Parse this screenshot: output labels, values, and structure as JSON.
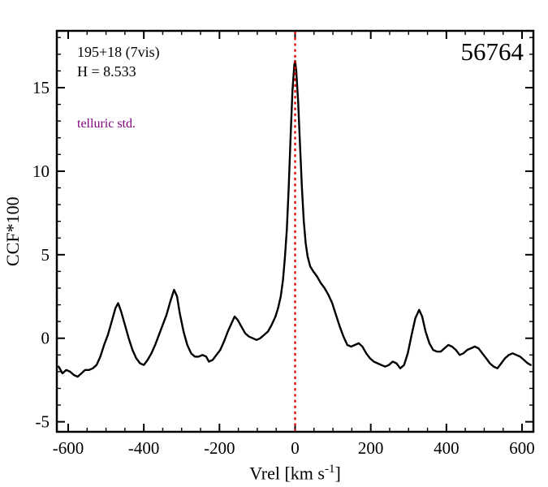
{
  "chart_data": {
    "type": "line",
    "title": "56764",
    "annotations": {
      "target_id": "195+18 (7vis)",
      "h_magnitude": "H = 8.533",
      "telluric_note": "telluric std."
    },
    "xlabel": "Vrel [km s⁻¹]",
    "xlabel_parts": {
      "prefix": "Vrel [km s",
      "sup": "-1",
      "suffix": "]"
    },
    "ylabel": "CCF*100",
    "xlim": [
      -630,
      630
    ],
    "ylim": [
      -5.6,
      18.4
    ],
    "x_ticks": [
      -600,
      -400,
      -200,
      0,
      200,
      400,
      600
    ],
    "y_ticks": [
      -5,
      0,
      5,
      10,
      15
    ],
    "x_minor_step": 50,
    "y_minor_step": 1,
    "grid": false,
    "legend": false,
    "vline": {
      "x": 0,
      "style": "dotted",
      "color": "#e00000"
    },
    "colors": {
      "curve": "#000000",
      "axis": "#000000",
      "vline": "#e00000",
      "telluric_note": "#800080",
      "background": "#ffffff"
    },
    "series": [
      {
        "name": "CCF",
        "points": [
          [
            -625,
            -1.7
          ],
          [
            -615,
            -2.1
          ],
          [
            -605,
            -1.9
          ],
          [
            -595,
            -2.0
          ],
          [
            -585,
            -2.2
          ],
          [
            -575,
            -2.3
          ],
          [
            -565,
            -2.1
          ],
          [
            -555,
            -1.9
          ],
          [
            -545,
            -1.9
          ],
          [
            -535,
            -1.8
          ],
          [
            -525,
            -1.6
          ],
          [
            -515,
            -1.1
          ],
          [
            -505,
            -0.4
          ],
          [
            -495,
            0.2
          ],
          [
            -485,
            1.0
          ],
          [
            -475,
            1.8
          ],
          [
            -468,
            2.1
          ],
          [
            -460,
            1.6
          ],
          [
            -450,
            0.8
          ],
          [
            -440,
            0.0
          ],
          [
            -430,
            -0.7
          ],
          [
            -420,
            -1.2
          ],
          [
            -410,
            -1.5
          ],
          [
            -400,
            -1.6
          ],
          [
            -390,
            -1.3
          ],
          [
            -380,
            -0.9
          ],
          [
            -370,
            -0.4
          ],
          [
            -360,
            0.2
          ],
          [
            -350,
            0.8
          ],
          [
            -340,
            1.4
          ],
          [
            -330,
            2.2
          ],
          [
            -320,
            2.9
          ],
          [
            -312,
            2.5
          ],
          [
            -305,
            1.5
          ],
          [
            -295,
            0.4
          ],
          [
            -285,
            -0.4
          ],
          [
            -275,
            -0.9
          ],
          [
            -265,
            -1.1
          ],
          [
            -255,
            -1.1
          ],
          [
            -245,
            -1.0
          ],
          [
            -235,
            -1.1
          ],
          [
            -228,
            -1.4
          ],
          [
            -218,
            -1.3
          ],
          [
            -208,
            -1.0
          ],
          [
            -198,
            -0.7
          ],
          [
            -188,
            -0.2
          ],
          [
            -178,
            0.4
          ],
          [
            -168,
            0.9
          ],
          [
            -160,
            1.3
          ],
          [
            -152,
            1.1
          ],
          [
            -142,
            0.7
          ],
          [
            -132,
            0.3
          ],
          [
            -122,
            0.1
          ],
          [
            -112,
            0.0
          ],
          [
            -102,
            -0.1
          ],
          [
            -92,
            0.0
          ],
          [
            -82,
            0.2
          ],
          [
            -72,
            0.4
          ],
          [
            -62,
            0.8
          ],
          [
            -52,
            1.3
          ],
          [
            -45,
            1.8
          ],
          [
            -38,
            2.5
          ],
          [
            -32,
            3.5
          ],
          [
            -27,
            4.8
          ],
          [
            -22,
            6.5
          ],
          [
            -17,
            9.0
          ],
          [
            -12,
            12.0
          ],
          [
            -7,
            14.8
          ],
          [
            -2,
            16.4
          ],
          [
            0,
            16.6
          ],
          [
            3,
            16.0
          ],
          [
            8,
            14.2
          ],
          [
            13,
            11.5
          ],
          [
            18,
            9.0
          ],
          [
            23,
            7.0
          ],
          [
            28,
            5.7
          ],
          [
            33,
            4.9
          ],
          [
            40,
            4.3
          ],
          [
            48,
            4.0
          ],
          [
            58,
            3.7
          ],
          [
            68,
            3.3
          ],
          [
            78,
            3.0
          ],
          [
            88,
            2.6
          ],
          [
            98,
            2.1
          ],
          [
            108,
            1.4
          ],
          [
            118,
            0.7
          ],
          [
            128,
            0.1
          ],
          [
            138,
            -0.4
          ],
          [
            148,
            -0.5
          ],
          [
            158,
            -0.4
          ],
          [
            168,
            -0.3
          ],
          [
            178,
            -0.5
          ],
          [
            188,
            -0.9
          ],
          [
            198,
            -1.2
          ],
          [
            208,
            -1.4
          ],
          [
            218,
            -1.5
          ],
          [
            228,
            -1.6
          ],
          [
            238,
            -1.7
          ],
          [
            248,
            -1.6
          ],
          [
            258,
            -1.4
          ],
          [
            268,
            -1.5
          ],
          [
            278,
            -1.8
          ],
          [
            288,
            -1.6
          ],
          [
            298,
            -0.9
          ],
          [
            308,
            0.2
          ],
          [
            318,
            1.2
          ],
          [
            328,
            1.7
          ],
          [
            336,
            1.3
          ],
          [
            345,
            0.4
          ],
          [
            355,
            -0.3
          ],
          [
            365,
            -0.7
          ],
          [
            375,
            -0.8
          ],
          [
            385,
            -0.8
          ],
          [
            395,
            -0.6
          ],
          [
            405,
            -0.4
          ],
          [
            415,
            -0.5
          ],
          [
            425,
            -0.7
          ],
          [
            435,
            -1.0
          ],
          [
            445,
            -0.9
          ],
          [
            455,
            -0.7
          ],
          [
            465,
            -0.6
          ],
          [
            475,
            -0.5
          ],
          [
            485,
            -0.6
          ],
          [
            495,
            -0.9
          ],
          [
            505,
            -1.2
          ],
          [
            515,
            -1.5
          ],
          [
            525,
            -1.7
          ],
          [
            535,
            -1.8
          ],
          [
            545,
            -1.5
          ],
          [
            555,
            -1.2
          ],
          [
            565,
            -1.0
          ],
          [
            575,
            -0.9
          ],
          [
            585,
            -1.0
          ],
          [
            595,
            -1.1
          ],
          [
            605,
            -1.3
          ],
          [
            615,
            -1.5
          ],
          [
            623,
            -1.6
          ]
        ]
      }
    ]
  }
}
